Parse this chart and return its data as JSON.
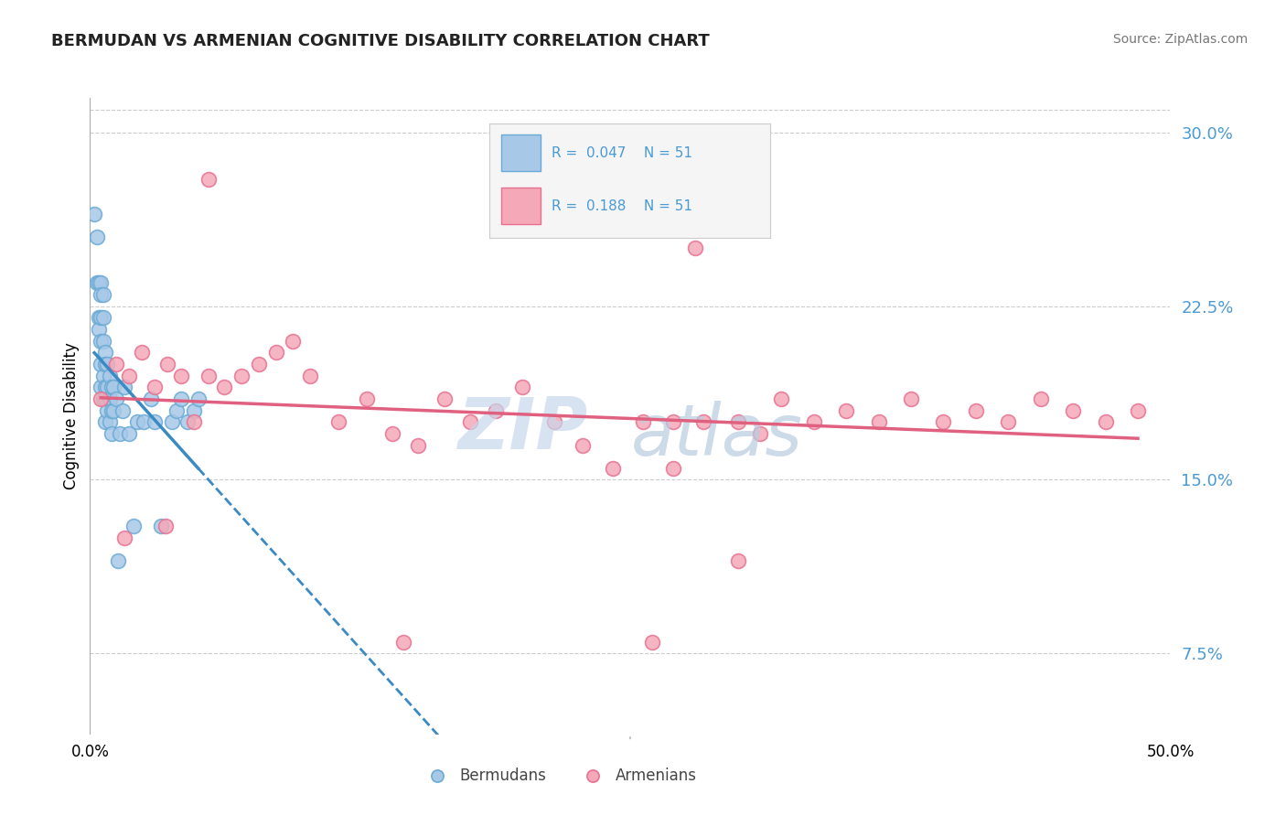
{
  "title": "BERMUDAN VS ARMENIAN COGNITIVE DISABILITY CORRELATION CHART",
  "source": "Source: ZipAtlas.com",
  "ylabel": "Cognitive Disability",
  "xlim": [
    0.0,
    0.5
  ],
  "ylim": [
    0.04,
    0.315
  ],
  "yticks": [
    0.075,
    0.15,
    0.225,
    0.3
  ],
  "ytick_labels": [
    "7.5%",
    "15.0%",
    "22.5%",
    "30.0%"
  ],
  "blue_color": "#a8c8e8",
  "pink_color": "#f4a8b8",
  "blue_edge_color": "#6aaad4",
  "pink_edge_color": "#e87090",
  "blue_line_color": "#3a8ac4",
  "pink_line_color": "#e06080",
  "tick_label_color": "#4a9ad4",
  "watermark_zip_color": "#c8d8ec",
  "watermark_atlas_color": "#b8cce0",
  "background_color": "#ffffff",
  "blue_scatter_x": [
    0.002,
    0.003,
    0.003,
    0.004,
    0.004,
    0.004,
    0.005,
    0.005,
    0.005,
    0.005,
    0.005,
    0.005,
    0.006,
    0.006,
    0.006,
    0.006,
    0.006,
    0.007,
    0.007,
    0.007,
    0.007,
    0.007,
    0.008,
    0.008,
    0.008,
    0.009,
    0.009,
    0.009,
    0.01,
    0.01,
    0.01,
    0.011,
    0.011,
    0.012,
    0.013,
    0.014,
    0.015,
    0.016,
    0.018,
    0.02,
    0.022,
    0.025,
    0.028,
    0.03,
    0.033,
    0.038,
    0.04,
    0.042,
    0.045,
    0.048,
    0.05
  ],
  "blue_scatter_y": [
    0.265,
    0.235,
    0.255,
    0.235,
    0.22,
    0.215,
    0.235,
    0.23,
    0.22,
    0.21,
    0.2,
    0.19,
    0.23,
    0.22,
    0.21,
    0.195,
    0.185,
    0.205,
    0.2,
    0.19,
    0.185,
    0.175,
    0.2,
    0.19,
    0.18,
    0.195,
    0.185,
    0.175,
    0.19,
    0.18,
    0.17,
    0.19,
    0.18,
    0.185,
    0.115,
    0.17,
    0.18,
    0.19,
    0.17,
    0.13,
    0.175,
    0.175,
    0.185,
    0.175,
    0.13,
    0.175,
    0.18,
    0.185,
    0.175,
    0.18,
    0.185
  ],
  "pink_scatter_x": [
    0.005,
    0.012,
    0.018,
    0.024,
    0.03,
    0.036,
    0.042,
    0.048,
    0.055,
    0.062,
    0.07,
    0.078,
    0.086,
    0.094,
    0.102,
    0.115,
    0.128,
    0.14,
    0.152,
    0.164,
    0.176,
    0.188,
    0.2,
    0.215,
    0.228,
    0.242,
    0.256,
    0.27,
    0.284,
    0.3,
    0.055,
    0.32,
    0.335,
    0.35,
    0.365,
    0.38,
    0.395,
    0.41,
    0.425,
    0.44,
    0.455,
    0.47,
    0.485,
    0.035,
    0.28,
    0.3,
    0.31,
    0.016,
    0.26,
    0.145,
    0.27
  ],
  "pink_scatter_y": [
    0.185,
    0.2,
    0.195,
    0.205,
    0.19,
    0.2,
    0.195,
    0.175,
    0.195,
    0.19,
    0.195,
    0.2,
    0.205,
    0.21,
    0.195,
    0.175,
    0.185,
    0.17,
    0.165,
    0.185,
    0.175,
    0.18,
    0.19,
    0.175,
    0.165,
    0.155,
    0.175,
    0.175,
    0.175,
    0.175,
    0.28,
    0.185,
    0.175,
    0.18,
    0.175,
    0.185,
    0.175,
    0.18,
    0.175,
    0.185,
    0.18,
    0.175,
    0.18,
    0.13,
    0.25,
    0.115,
    0.17,
    0.125,
    0.08,
    0.08,
    0.155
  ]
}
